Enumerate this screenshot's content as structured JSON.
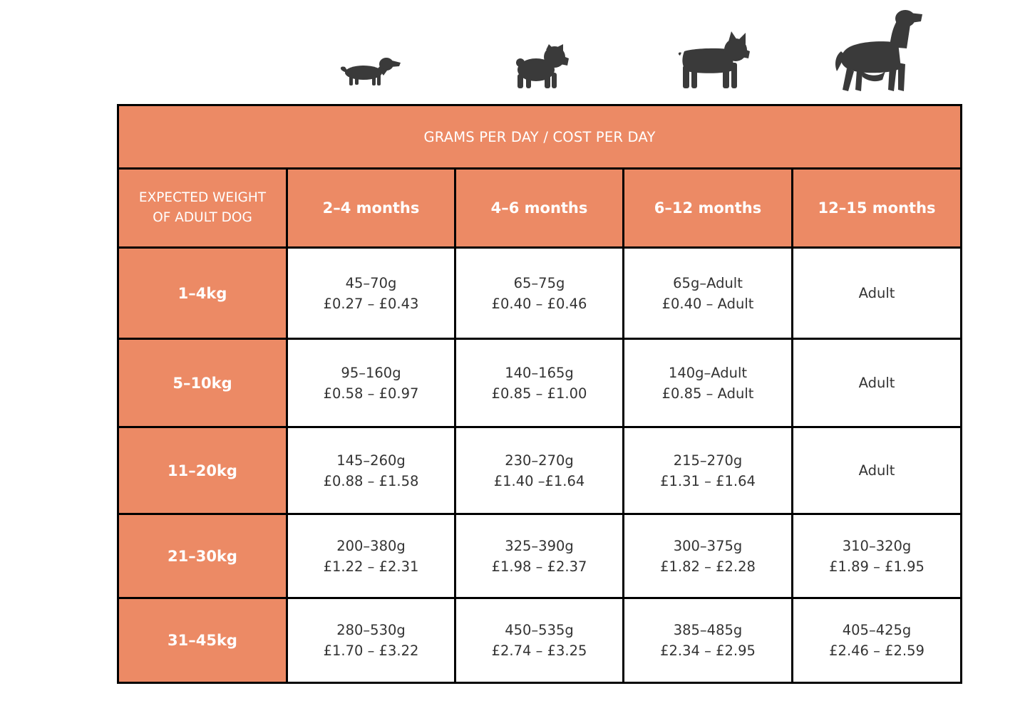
{
  "icons": {
    "dog_xs": "dachshund-icon",
    "dog_s": "pug-icon",
    "dog_m": "french-bulldog-icon",
    "dog_l": "spaniel-icon",
    "icon_color": "#3a3a3a"
  },
  "colors": {
    "header_fill": "#ec8a65",
    "border": "#000000",
    "cell_text": "#333333"
  },
  "table": {
    "title": "GRAMS PER DAY / COST PER DAY",
    "weight_header_line1": "EXPECTED WEIGHT",
    "weight_header_line2": "OF ADULT DOG",
    "age_headers": [
      "2–4 months",
      "4–6 months",
      "6–12 months",
      "12–15 months"
    ],
    "rows": [
      {
        "weight": "1–4kg",
        "cells": [
          {
            "grams": "45–70g",
            "cost": "£0.27 – £0.43"
          },
          {
            "grams": "65–75g",
            "cost": "£0.40 – £0.46"
          },
          {
            "grams": "65g–Adult",
            "cost": "£0.40 – Adult"
          },
          {
            "grams": "Adult",
            "cost": ""
          }
        ]
      },
      {
        "weight": "5–10kg",
        "cells": [
          {
            "grams": "95–160g",
            "cost": "£0.58 – £0.97"
          },
          {
            "grams": "140–165g",
            "cost": "£0.85 – £1.00"
          },
          {
            "grams": "140g–Adult",
            "cost": "£0.85 – Adult"
          },
          {
            "grams": "Adult",
            "cost": ""
          }
        ]
      },
      {
        "weight": "11–20kg",
        "cells": [
          {
            "grams": "145–260g",
            "cost": "£0.88 – £1.58"
          },
          {
            "grams": "230–270g",
            "cost": "£1.40 –£1.64"
          },
          {
            "grams": "215–270g",
            "cost": "£1.31 – £1.64"
          },
          {
            "grams": "Adult",
            "cost": ""
          }
        ]
      },
      {
        "weight": "21–30kg",
        "cells": [
          {
            "grams": "200–380g",
            "cost": "£1.22 – £2.31"
          },
          {
            "grams": "325–390g",
            "cost": "£1.98 – £2.37"
          },
          {
            "grams": "300–375g",
            "cost": "£1.82 – £2.28"
          },
          {
            "grams": "310–320g",
            "cost": "£1.89 – £1.95"
          }
        ]
      },
      {
        "weight": "31–45kg",
        "cells": [
          {
            "grams": "280–530g",
            "cost": "£1.70 – £3.22"
          },
          {
            "grams": "450–535g",
            "cost": "£2.74 – £3.25"
          },
          {
            "grams": "385–485g",
            "cost": "£2.34 – £2.95"
          },
          {
            "grams": "405–425g",
            "cost": "£2.46 – £2.59"
          }
        ]
      }
    ]
  }
}
